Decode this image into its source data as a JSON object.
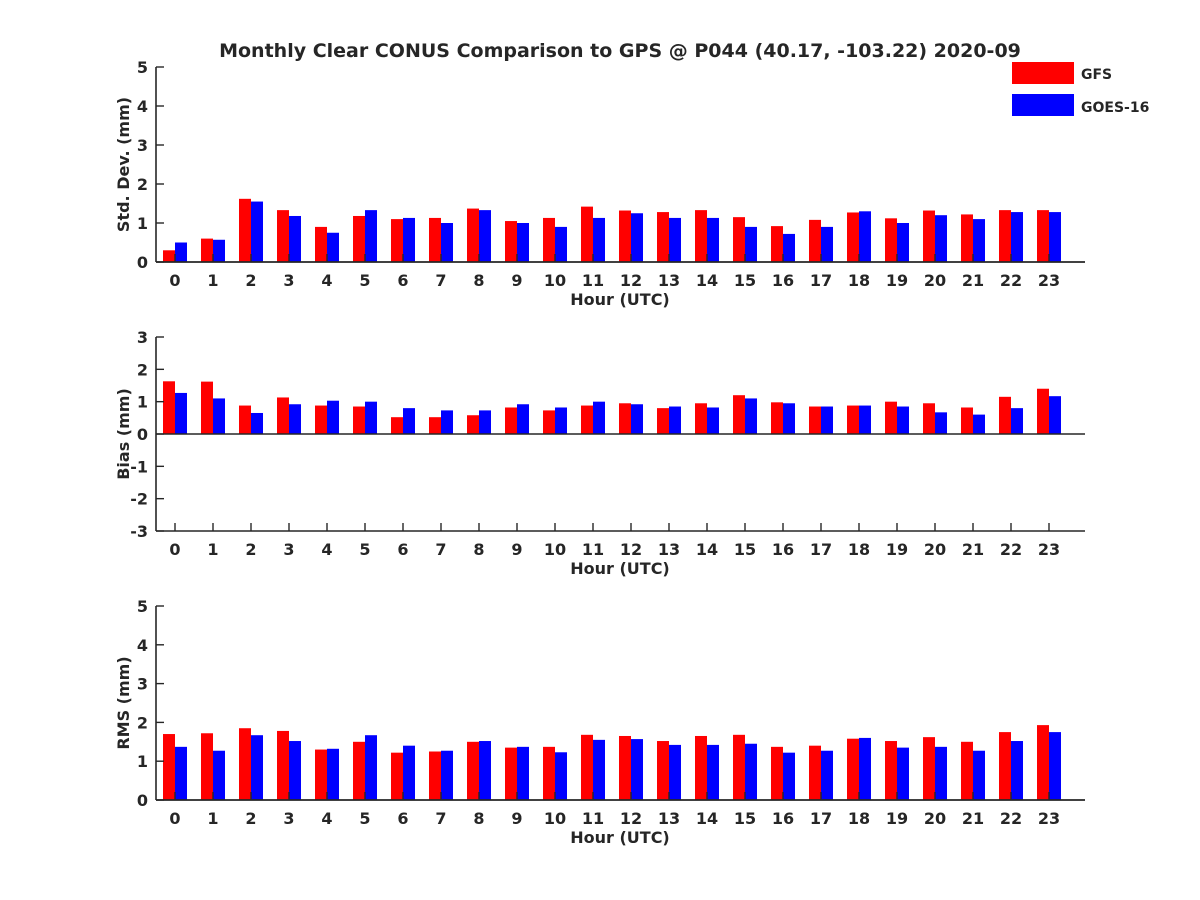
{
  "chart_data": [
    {
      "type": "bar",
      "title": "Monthly Clear CONUS Comparison to GPS @ P044 (40.17, -103.22) 2020-09",
      "xlabel": "Hour (UTC)",
      "ylabel": "Std. Dev. (mm)",
      "ylim": [
        0,
        5
      ],
      "yticks": [
        "0",
        "1",
        "2",
        "3",
        "4",
        "5"
      ],
      "categories": [
        "0",
        "1",
        "2",
        "3",
        "4",
        "5",
        "6",
        "7",
        "8",
        "9",
        "10",
        "11",
        "12",
        "13",
        "14",
        "15",
        "16",
        "17",
        "18",
        "19",
        "20",
        "21",
        "22",
        "23"
      ],
      "series": [
        {
          "name": "GFS",
          "color": "#ff0000",
          "values": [
            0.3,
            0.6,
            1.62,
            1.33,
            0.9,
            1.18,
            1.1,
            1.13,
            1.37,
            1.05,
            1.13,
            1.42,
            1.32,
            1.28,
            1.33,
            1.15,
            0.92,
            1.08,
            1.27,
            1.12,
            1.32,
            1.22,
            1.33,
            1.33
          ]
        },
        {
          "name": "GOES-16",
          "color": "#0000ff",
          "values": [
            0.5,
            0.57,
            1.55,
            1.18,
            0.75,
            1.33,
            1.13,
            1.0,
            1.33,
            1.0,
            0.9,
            1.13,
            1.25,
            1.13,
            1.13,
            0.9,
            0.72,
            0.9,
            1.3,
            1.0,
            1.2,
            1.1,
            1.28,
            1.28
          ]
        }
      ]
    },
    {
      "type": "bar",
      "xlabel": "Hour (UTC)",
      "ylabel": "Bias (mm)",
      "ylim": [
        -3,
        3
      ],
      "yticks": [
        "-3",
        "-2",
        "-1",
        "0",
        "1",
        "2",
        "3"
      ],
      "categories": [
        "0",
        "1",
        "2",
        "3",
        "4",
        "5",
        "6",
        "7",
        "8",
        "9",
        "10",
        "11",
        "12",
        "13",
        "14",
        "15",
        "16",
        "17",
        "18",
        "19",
        "20",
        "21",
        "22",
        "23"
      ],
      "series": [
        {
          "name": "GFS",
          "color": "#ff0000",
          "values": [
            1.63,
            1.62,
            0.88,
            1.13,
            0.88,
            0.85,
            0.52,
            0.52,
            0.58,
            0.82,
            0.73,
            0.88,
            0.95,
            0.8,
            0.95,
            1.2,
            0.98,
            0.85,
            0.88,
            1.0,
            0.95,
            0.82,
            1.15,
            1.4
          ]
        },
        {
          "name": "GOES-16",
          "color": "#0000ff",
          "values": [
            1.27,
            1.1,
            0.65,
            0.92,
            1.03,
            1.0,
            0.8,
            0.73,
            0.73,
            0.92,
            0.82,
            1.0,
            0.92,
            0.85,
            0.82,
            1.1,
            0.95,
            0.85,
            0.88,
            0.85,
            0.67,
            0.6,
            0.8,
            1.17
          ]
        }
      ]
    },
    {
      "type": "bar",
      "xlabel": "Hour (UTC)",
      "ylabel": "RMS (mm)",
      "ylim": [
        0,
        5
      ],
      "yticks": [
        "0",
        "1",
        "2",
        "3",
        "4",
        "5"
      ],
      "categories": [
        "0",
        "1",
        "2",
        "3",
        "4",
        "5",
        "6",
        "7",
        "8",
        "9",
        "10",
        "11",
        "12",
        "13",
        "14",
        "15",
        "16",
        "17",
        "18",
        "19",
        "20",
        "21",
        "22",
        "23"
      ],
      "series": [
        {
          "name": "GFS",
          "color": "#ff0000",
          "values": [
            1.7,
            1.72,
            1.85,
            1.78,
            1.3,
            1.5,
            1.22,
            1.25,
            1.5,
            1.35,
            1.37,
            1.68,
            1.65,
            1.52,
            1.65,
            1.68,
            1.37,
            1.4,
            1.58,
            1.52,
            1.62,
            1.5,
            1.75,
            1.93
          ]
        },
        {
          "name": "GOES-16",
          "color": "#0000ff",
          "values": [
            1.37,
            1.27,
            1.67,
            1.52,
            1.32,
            1.67,
            1.4,
            1.27,
            1.52,
            1.37,
            1.23,
            1.55,
            1.57,
            1.42,
            1.42,
            1.45,
            1.22,
            1.27,
            1.6,
            1.35,
            1.37,
            1.27,
            1.52,
            1.75
          ]
        }
      ]
    }
  ],
  "legend": [
    {
      "label": "GFS",
      "color": "#ff0000"
    },
    {
      "label": "GOES-16",
      "color": "#0000ff"
    }
  ]
}
